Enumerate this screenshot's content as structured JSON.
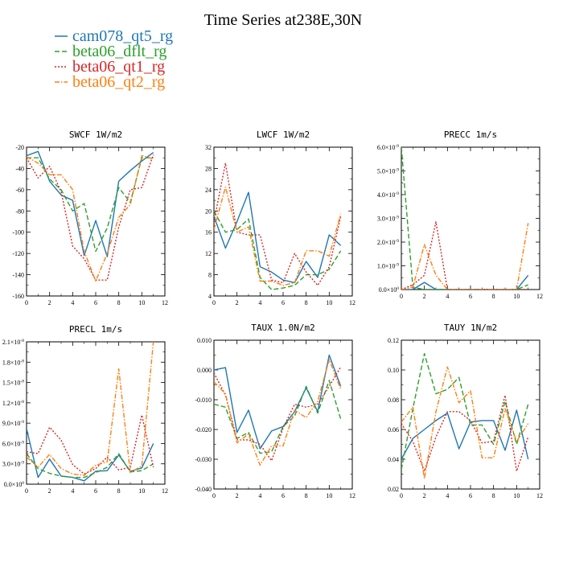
{
  "figure": {
    "title": "Time Series at238E,30N",
    "legend": [
      {
        "name": "cam078_qt5_rg",
        "color": "#1f77b4",
        "dash": ""
      },
      {
        "name": "beta06_dflt_rg",
        "color": "#2ca02c",
        "dash": "6,3"
      },
      {
        "name": "beta06_qt1_rg",
        "color": "#d62728",
        "dash": "2,2"
      },
      {
        "name": "beta06_qt2_rg",
        "color": "#ff7f0e",
        "dash": "6,2,1.5,2"
      }
    ]
  },
  "chart_data": [
    {
      "type": "line",
      "title": "SWCF   1W/m2",
      "xlim": [
        0,
        12
      ],
      "xticks": [
        "0",
        "2",
        "4",
        "6",
        "8",
        "10",
        "12"
      ],
      "ylim": [
        -160,
        -20
      ],
      "yticks": [
        "-20",
        "-40",
        "-60",
        "-80",
        "-100",
        "-120",
        "-140",
        "-160"
      ],
      "x": [
        0,
        1,
        2,
        3,
        4,
        5,
        6,
        7,
        8,
        9,
        10,
        11
      ],
      "series": [
        {
          "name": "cam078_qt5_rg",
          "values": [
            -28,
            -24,
            -52,
            -65,
            -70,
            -122,
            -89,
            -123,
            -52,
            -42,
            -33,
            -25
          ]
        },
        {
          "name": "beta06_dflt_rg",
          "values": [
            -30,
            -30,
            -50,
            -60,
            -80,
            -73,
            -118,
            -96,
            -58,
            -72,
            -30,
            -30
          ]
        },
        {
          "name": "beta06_qt1_rg",
          "values": [
            -30,
            -49,
            -38,
            -62,
            -113,
            -125,
            -145,
            -145,
            -95,
            -60,
            -58,
            -27
          ]
        },
        {
          "name": "beta06_qt2_rg",
          "values": [
            -29,
            -35,
            -46,
            -46,
            -60,
            -118,
            -146,
            -120,
            -86,
            -74,
            -28,
            -31
          ]
        }
      ]
    },
    {
      "type": "line",
      "title": "LWCF   1W/m2",
      "xlim": [
        0,
        12
      ],
      "xticks": [
        "0",
        "2",
        "4",
        "6",
        "8",
        "10",
        "12"
      ],
      "ylim": [
        4,
        32
      ],
      "yticks": [
        "32",
        "28",
        "24",
        "20",
        "16",
        "12",
        "8",
        "4"
      ],
      "x": [
        0,
        1,
        2,
        3,
        4,
        5,
        6,
        7,
        8,
        9,
        10,
        11
      ],
      "series": [
        {
          "name": "cam078_qt5_rg",
          "values": [
            19,
            13,
            18,
            23.5,
            9.5,
            8.5,
            7,
            6.5,
            10.5,
            7.5,
            15.5,
            13.5
          ]
        },
        {
          "name": "beta06_dflt_rg",
          "values": [
            20,
            16,
            16.5,
            18.5,
            7.5,
            5.2,
            5.5,
            6,
            8,
            8,
            9,
            12.5
          ]
        },
        {
          "name": "beta06_qt1_rg",
          "values": [
            18,
            29,
            16,
            15.5,
            15.5,
            7,
            6.5,
            12,
            8.5,
            6,
            9.5,
            19
          ]
        },
        {
          "name": "beta06_qt2_rg",
          "values": [
            16.5,
            24.5,
            16,
            17,
            6.8,
            6.8,
            6,
            6.5,
            12.5,
            12.5,
            11.5,
            19.5
          ]
        }
      ]
    },
    {
      "type": "line",
      "title": "PRECC   1m/s",
      "xlim": [
        0,
        12
      ],
      "xticks": [
        "0",
        "2",
        "4",
        "6",
        "8",
        "10",
        "12"
      ],
      "ylim": [
        0,
        6e-09
      ],
      "yticks": [
        {
          "base": "6.0×10",
          "exp": "-9"
        },
        {
          "base": "5.0×10",
          "exp": "-9"
        },
        {
          "base": "4.0×10",
          "exp": "-9"
        },
        {
          "base": "3.0×10",
          "exp": "-9"
        },
        {
          "base": "2.0×10",
          "exp": "-9"
        },
        {
          "base": "1.0×10",
          "exp": "-9"
        },
        {
          "base": "0.0×10",
          "exp": "0"
        }
      ],
      "x": [
        0,
        1,
        2,
        3,
        4,
        5,
        6,
        7,
        8,
        9,
        10,
        11
      ],
      "series": [
        {
          "name": "cam078_qt5_rg",
          "values": [
            0,
            0,
            3e-10,
            0,
            0,
            0,
            0,
            0,
            0,
            0,
            0,
            6e-10
          ]
        },
        {
          "name": "beta06_dflt_rg",
          "values": [
            6e-09,
            1e-10,
            0,
            0,
            0,
            0,
            0,
            0,
            0,
            0,
            0,
            2e-10
          ]
        },
        {
          "name": "beta06_qt1_rg",
          "values": [
            0,
            2e-10,
            6e-10,
            2.85e-09,
            0,
            0,
            0,
            0,
            0,
            0,
            0,
            0
          ]
        },
        {
          "name": "beta06_qt2_rg",
          "values": [
            0,
            1e-10,
            1.9e-09,
            6e-10,
            0,
            0,
            0,
            0,
            0,
            0,
            0,
            2.8e-09
          ]
        }
      ]
    },
    {
      "type": "line",
      "title": "PRECL   1m/s",
      "xlim": [
        0,
        12
      ],
      "xticks": [
        "0",
        "2",
        "4",
        "6",
        "8",
        "10",
        "12"
      ],
      "ylim": [
        0,
        2.1e-08
      ],
      "yticks": [
        {
          "base": "2.1×10",
          "exp": "-8"
        },
        {
          "base": "1.8×10",
          "exp": "-8"
        },
        {
          "base": "1.5×10",
          "exp": "-8"
        },
        {
          "base": "1.2×10",
          "exp": "-8"
        },
        {
          "base": "9.0×10",
          "exp": "-9"
        },
        {
          "base": "6.0×10",
          "exp": "-9"
        },
        {
          "base": "3.0×10",
          "exp": "-9"
        },
        {
          "base": "0.0×10",
          "exp": "0"
        }
      ],
      "x": [
        0,
        1,
        2,
        3,
        4,
        5,
        6,
        7,
        8,
        9,
        10,
        11
      ],
      "series": [
        {
          "name": "cam078_qt5_rg",
          "values": [
            8.2e-09,
            1e-09,
            3.7e-09,
            1.2e-09,
            1e-09,
            5e-10,
            1.9e-09,
            2e-09,
            4.3e-09,
            1.9e-09,
            2.4e-09,
            6e-09
          ]
        },
        {
          "name": "beta06_dflt_rg",
          "values": [
            4.5e-09,
            2.3e-09,
            1.6e-09,
            1.2e-09,
            1e-09,
            1e-09,
            1.7e-09,
            2.5e-09,
            4.5e-09,
            1.8e-09,
            2e-09,
            3e-09
          ]
        },
        {
          "name": "beta06_qt1_rg",
          "values": [
            4.8e-09,
            4.5e-09,
            8.4e-09,
            6.5e-09,
            2.9e-09,
            1.5e-09,
            2.3e-09,
            4e-09,
            2.1e-09,
            2.5e-09,
            1.02e-08,
            2.5e-09
          ]
        },
        {
          "name": "beta06_qt2_rg",
          "values": [
            4e-09,
            2.5e-09,
            4.4e-09,
            2.3e-09,
            1.5e-09,
            1.3e-09,
            2.8e-09,
            3.3e-09,
            1.7e-08,
            1.7e-09,
            2.7e-09,
            2.1e-08
          ]
        }
      ]
    },
    {
      "type": "line",
      "title": "TAUX   1.0N/m2",
      "xlim": [
        0,
        12
      ],
      "xticks": [
        "0",
        "2",
        "4",
        "6",
        "8",
        "10",
        "12"
      ],
      "ylim": [
        -0.04,
        0.01
      ],
      "yticks": [
        "0.010",
        "0.000",
        "-0.010",
        "-0.020",
        "-0.030",
        "-0.040"
      ],
      "x": [
        0,
        1,
        2,
        3,
        4,
        5,
        6,
        7,
        8,
        9,
        10,
        11
      ],
      "series": [
        {
          "name": "cam078_qt5_rg",
          "values": [
            0.0,
            0.0008,
            -0.021,
            -0.0135,
            -0.0265,
            -0.0205,
            -0.019,
            -0.014,
            -0.006,
            -0.014,
            0.005,
            -0.0055
          ]
        },
        {
          "name": "beta06_dflt_rg",
          "values": [
            -0.0115,
            -0.0125,
            -0.023,
            -0.021,
            -0.028,
            -0.0275,
            -0.019,
            -0.0155,
            -0.0055,
            -0.0145,
            -0.0035,
            -0.0165
          ]
        },
        {
          "name": "beta06_qt1_rg",
          "values": [
            -0.001,
            -0.0085,
            -0.0235,
            -0.0235,
            -0.025,
            -0.0305,
            -0.0195,
            -0.0115,
            -0.0125,
            -0.0115,
            -0.0055,
            0.001
          ]
        },
        {
          "name": "beta06_qt2_rg",
          "values": [
            -0.004,
            -0.008,
            -0.0245,
            -0.0215,
            -0.032,
            -0.0255,
            -0.0255,
            -0.0135,
            -0.016,
            -0.0105,
            0.0035,
            -0.0065
          ]
        }
      ]
    },
    {
      "type": "line",
      "title": "TAUY   1N/m2",
      "xlim": [
        0,
        12
      ],
      "xticks": [
        "0",
        "2",
        "4",
        "6",
        "8",
        "10",
        "12"
      ],
      "ylim": [
        0.02,
        0.12
      ],
      "yticks": [
        "0.12",
        "0.10",
        "0.08",
        "0.06",
        "0.04",
        "0.02"
      ],
      "x": [
        0,
        1,
        2,
        3,
        4,
        5,
        6,
        7,
        8,
        9,
        10,
        11
      ],
      "series": [
        {
          "name": "cam078_qt5_rg",
          "values": [
            0.04,
            0.054,
            0.06,
            0.066,
            0.071,
            0.047,
            0.065,
            0.066,
            0.066,
            0.046,
            0.073,
            0.04
          ]
        },
        {
          "name": "beta06_dflt_rg",
          "values": [
            0.033,
            0.074,
            0.111,
            0.084,
            0.087,
            0.095,
            0.063,
            0.063,
            0.05,
            0.079,
            0.05,
            0.077
          ]
        },
        {
          "name": "beta06_qt1_rg",
          "values": [
            0.064,
            0.052,
            0.032,
            0.055,
            0.072,
            0.072,
            0.066,
            0.051,
            0.052,
            0.083,
            0.032,
            0.055
          ]
        },
        {
          "name": "beta06_qt2_rg",
          "values": [
            0.065,
            0.075,
            0.027,
            0.072,
            0.102,
            0.078,
            0.086,
            0.041,
            0.041,
            0.074,
            0.052,
            0.064
          ]
        }
      ]
    }
  ]
}
